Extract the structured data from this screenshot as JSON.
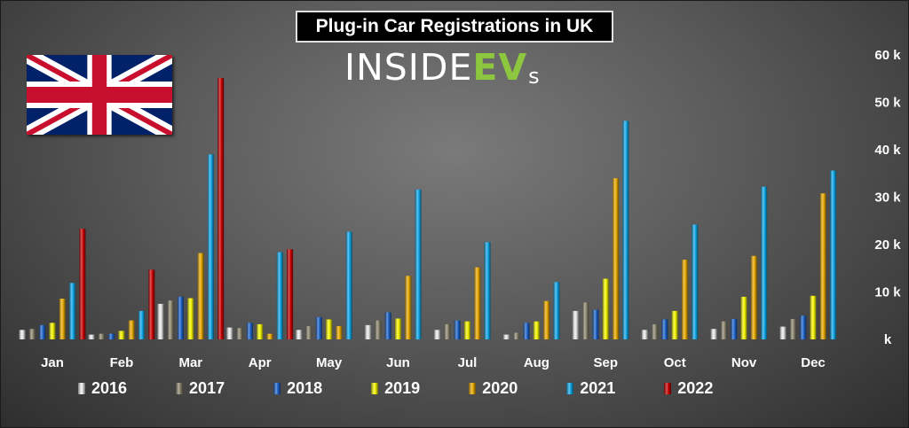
{
  "title": "Plug-in Car Registrations in UK",
  "logo": {
    "main": "INSIDE",
    "ev": "EV",
    "suffix": "s"
  },
  "flag_icon": "uk-flag-icon",
  "colors": {
    "2016": "#e6e6e6",
    "2017": "#8c8670",
    "2018": "#1e63c8",
    "2019": "#f2f200",
    "2020": "#e6a800",
    "2021": "#10a6e6",
    "2022": "#c80000",
    "axis_text": "#ffffff"
  },
  "chart_data": {
    "type": "bar",
    "title": "Plug-in Car Registrations in UK",
    "categories": [
      "Jan",
      "Feb",
      "Mar",
      "Apr",
      "May",
      "Jun",
      "Jul",
      "Aug",
      "Sep",
      "Oct",
      "Nov",
      "Dec"
    ],
    "yticks": [
      "60 k",
      "50 k",
      "40 k",
      "30 k",
      "20 k",
      "10 k",
      "k"
    ],
    "ylim": [
      0,
      60
    ],
    "yunit": "thousand registrations",
    "grid": false,
    "legend_position": "bottom",
    "series": [
      {
        "name": "2016",
        "values": [
          2.0,
          1.0,
          7.5,
          2.5,
          2.0,
          3.0,
          2.0,
          1.0,
          6.0,
          2.0,
          2.2,
          2.7
        ]
      },
      {
        "name": "2017",
        "values": [
          2.2,
          1.2,
          8.2,
          2.4,
          2.8,
          4.0,
          3.2,
          1.4,
          7.8,
          3.2,
          3.8,
          4.3
        ]
      },
      {
        "name": "2018",
        "values": [
          3.0,
          1.2,
          9.0,
          3.5,
          4.7,
          5.7,
          4.0,
          3.5,
          6.2,
          4.2,
          4.3,
          5.0
        ]
      },
      {
        "name": "2019",
        "values": [
          3.5,
          1.8,
          8.7,
          3.2,
          4.2,
          4.4,
          3.8,
          3.8,
          12.8,
          6.0,
          9.0,
          9.2
        ]
      },
      {
        "name": "2020",
        "values": [
          8.6,
          4.0,
          18.2,
          1.2,
          2.8,
          13.4,
          15.2,
          8.1,
          34.0,
          16.8,
          17.6,
          30.8
        ]
      },
      {
        "name": "2021",
        "values": [
          11.9,
          6.0,
          39.0,
          18.4,
          22.7,
          31.6,
          20.5,
          12.1,
          46.1,
          24.2,
          32.2,
          35.6
        ]
      },
      {
        "name": "2022",
        "values": [
          23.3,
          14.7,
          55.1,
          19.0,
          null,
          null,
          null,
          null,
          null,
          null,
          null,
          null
        ]
      }
    ]
  }
}
